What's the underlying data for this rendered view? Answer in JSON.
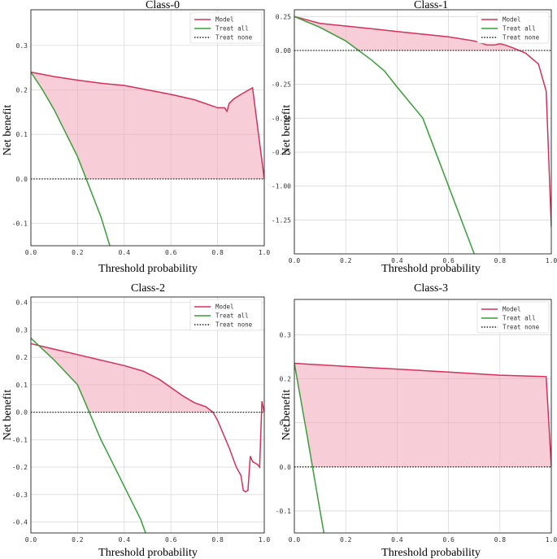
{
  "chart_data": [
    {
      "type": "line",
      "title": "Class-0",
      "xlabel": "Threshold probability",
      "ylabel": "Net benefit",
      "xlim": [
        0,
        1
      ],
      "ylim": [
        -0.15,
        0.38
      ],
      "xticks": [
        "0.0",
        "0.2",
        "0.4",
        "0.6",
        "0.8",
        "1.0"
      ],
      "yticks": [
        "-0.1",
        "0.0",
        "0.1",
        "0.2",
        "0.3"
      ],
      "legend_position": "top-right",
      "series": [
        {
          "name": "Model",
          "color": "#d6305a",
          "style": "solid",
          "x": [
            0.0,
            0.1,
            0.2,
            0.3,
            0.4,
            0.5,
            0.6,
            0.7,
            0.8,
            0.83,
            0.84,
            0.85,
            0.87,
            0.9,
            0.95,
            1.0
          ],
          "y": [
            0.24,
            0.23,
            0.222,
            0.215,
            0.21,
            0.2,
            0.19,
            0.178,
            0.16,
            0.16,
            0.152,
            0.17,
            0.18,
            0.19,
            0.205,
            0.0
          ]
        },
        {
          "name": "Treat all",
          "color": "#3a9e3a",
          "style": "solid",
          "x": [
            0.0,
            0.05,
            0.1,
            0.2,
            0.3,
            0.35
          ],
          "y": [
            0.24,
            0.2,
            0.155,
            0.05,
            -0.085,
            -0.17
          ]
        },
        {
          "name": "Treat none",
          "color": "#222222",
          "style": "dotted",
          "x": [
            0.0,
            1.0
          ],
          "y": [
            0.0,
            0.0
          ]
        }
      ]
    },
    {
      "type": "line",
      "title": "Class-1",
      "xlabel": "Threshold probability",
      "ylabel": "Net benefit",
      "xlim": [
        0,
        1
      ],
      "ylim": [
        -1.5,
        0.3
      ],
      "xticks": [
        "0.0",
        "0.2",
        "0.4",
        "0.6",
        "0.8",
        "1.0"
      ],
      "yticks": [
        "-1.25",
        "-1.00",
        "-0.75",
        "-0.50",
        "-0.25",
        "0.00",
        "0.25"
      ],
      "legend_position": "top-right",
      "series": [
        {
          "name": "Model",
          "color": "#d6305a",
          "style": "solid",
          "x": [
            0.0,
            0.1,
            0.2,
            0.3,
            0.4,
            0.5,
            0.6,
            0.7,
            0.75,
            0.78,
            0.8,
            0.82,
            0.85,
            0.9,
            0.95,
            0.98,
            1.0
          ],
          "y": [
            0.25,
            0.2,
            0.18,
            0.16,
            0.14,
            0.12,
            0.1,
            0.07,
            0.04,
            0.04,
            0.05,
            0.04,
            0.02,
            -0.02,
            -0.1,
            -0.3,
            -1.3
          ]
        },
        {
          "name": "Treat all",
          "color": "#3a9e3a",
          "style": "solid",
          "x": [
            0.0,
            0.1,
            0.2,
            0.25,
            0.3,
            0.35,
            0.4,
            0.5,
            0.6,
            0.7
          ],
          "y": [
            0.25,
            0.17,
            0.07,
            0.0,
            -0.07,
            -0.15,
            -0.27,
            -0.5,
            -1.0,
            -1.5
          ]
        },
        {
          "name": "Treat none",
          "color": "#222222",
          "style": "dotted",
          "x": [
            0.0,
            1.0
          ],
          "y": [
            0.0,
            0.0
          ]
        }
      ]
    },
    {
      "type": "line",
      "title": "Class-2",
      "xlabel": "Threshold probability",
      "ylabel": "Net benefit",
      "xlim": [
        0,
        1
      ],
      "ylim": [
        -0.44,
        0.42
      ],
      "xticks": [
        "0.0",
        "0.2",
        "0.4",
        "0.6",
        "0.8",
        "1.0"
      ],
      "yticks": [
        "-0.4",
        "-0.3",
        "-0.2",
        "-0.1",
        "0.0",
        "0.1",
        "0.2",
        "0.3",
        "0.4"
      ],
      "legend_position": "top-right",
      "series": [
        {
          "name": "Model",
          "color": "#d6305a",
          "style": "solid",
          "x": [
            0.0,
            0.1,
            0.2,
            0.3,
            0.4,
            0.48,
            0.55,
            0.6,
            0.65,
            0.7,
            0.75,
            0.78,
            0.8,
            0.82,
            0.85,
            0.88,
            0.9,
            0.91,
            0.92,
            0.93,
            0.94,
            0.95,
            0.97,
            0.98,
            0.99,
            1.0
          ],
          "y": [
            0.25,
            0.23,
            0.21,
            0.19,
            0.17,
            0.15,
            0.12,
            0.09,
            0.06,
            0.035,
            0.02,
            0.0,
            -0.03,
            -0.07,
            -0.13,
            -0.2,
            -0.23,
            -0.285,
            -0.29,
            -0.285,
            -0.16,
            -0.18,
            -0.19,
            -0.2,
            0.04,
            0.0
          ]
        },
        {
          "name": "Treat all",
          "color": "#3a9e3a",
          "style": "solid",
          "x": [
            0.0,
            0.1,
            0.2,
            0.25,
            0.3,
            0.4,
            0.47,
            0.5
          ],
          "y": [
            0.27,
            0.19,
            0.1,
            0.0,
            -0.1,
            -0.27,
            -0.39,
            -0.46
          ]
        },
        {
          "name": "Treat none",
          "color": "#222222",
          "style": "dotted",
          "x": [
            0.0,
            1.0
          ],
          "y": [
            0.0,
            0.0
          ]
        }
      ]
    },
    {
      "type": "line",
      "title": "Class-3",
      "xlabel": "Threshold probability",
      "ylabel": "Net benefit",
      "xlim": [
        0,
        1
      ],
      "ylim": [
        -0.15,
        0.38
      ],
      "xticks": [
        "0.0",
        "0.2",
        "0.4",
        "0.6",
        "0.8",
        "1.0"
      ],
      "yticks": [
        "-0.1",
        "0.0",
        "0.1",
        "0.2",
        "0.3"
      ],
      "legend_position": "top-right",
      "series": [
        {
          "name": "Model",
          "color": "#d6305a",
          "style": "solid",
          "x": [
            0.0,
            0.2,
            0.4,
            0.6,
            0.8,
            0.98,
            1.0
          ],
          "y": [
            0.235,
            0.228,
            0.222,
            0.215,
            0.208,
            0.205,
            0.0
          ]
        },
        {
          "name": "Treat all",
          "color": "#3a9e3a",
          "style": "solid",
          "x": [
            0.0,
            0.05,
            0.1,
            0.13
          ],
          "y": [
            0.235,
            0.07,
            -0.1,
            -0.2
          ]
        },
        {
          "name": "Treat none",
          "color": "#222222",
          "style": "dotted",
          "x": [
            0.0,
            1.0
          ],
          "y": [
            0.0,
            0.0
          ]
        }
      ]
    }
  ],
  "style": {
    "fill_color": "#f0a4b6",
    "grid_color": "#d9d9d9",
    "axis_color": "#222222"
  }
}
